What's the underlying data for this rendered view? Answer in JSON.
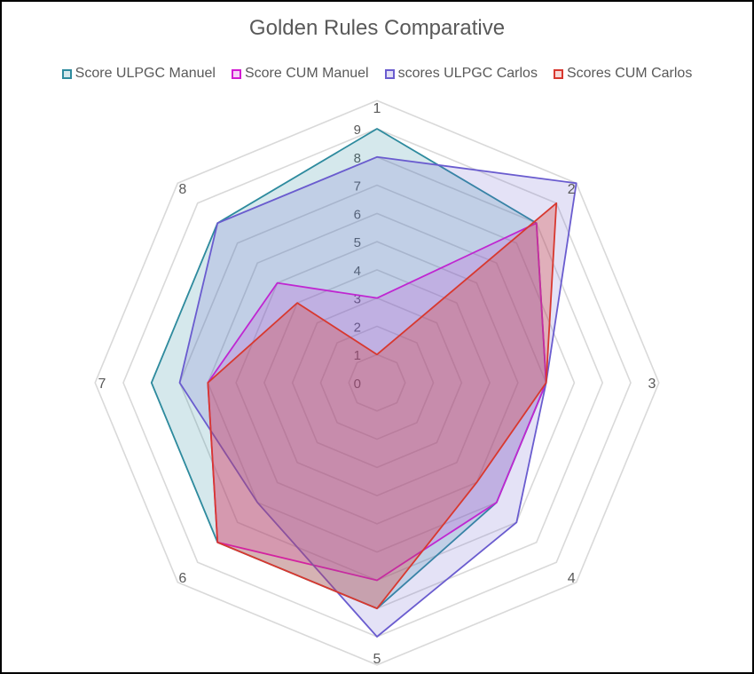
{
  "chart_data": {
    "type": "radar",
    "title": "Golden Rules Comparative",
    "categories": [
      "1",
      "2",
      "3",
      "4",
      "5",
      "6",
      "7",
      "8"
    ],
    "r_ticks": [
      "0",
      "1",
      "2",
      "3",
      "4",
      "5",
      "6",
      "7",
      "8",
      "9"
    ],
    "r_range": [
      0,
      9
    ],
    "grid": true,
    "legend_position": "top",
    "series": [
      {
        "name": "Score ULPGC Manuel",
        "values": [
          9,
          8,
          6,
          6,
          8,
          8,
          8,
          8
        ],
        "stroke": "#2E8B9E",
        "fill": "#2E8B9E",
        "fill_opacity": 0.2
      },
      {
        "name": "Score CUM Manuel",
        "values": [
          3,
          8,
          6,
          6,
          7,
          8,
          6,
          5
        ],
        "stroke": "#D21BD2",
        "fill": "#D21BD2",
        "fill_opacity": 0.18
      },
      {
        "name": "scores ULPGC Carlos",
        "values": [
          8,
          10,
          6,
          7,
          9,
          6,
          7,
          8
        ],
        "stroke": "#6A5CCF",
        "fill": "#6A5CCF",
        "fill_opacity": 0.18
      },
      {
        "name": "Scores CUM Carlos",
        "values": [
          1,
          9,
          6,
          5,
          8,
          8,
          6,
          4
        ],
        "stroke": "#D8382F",
        "fill": "#D8382F",
        "fill_opacity": 0.3
      }
    ]
  }
}
